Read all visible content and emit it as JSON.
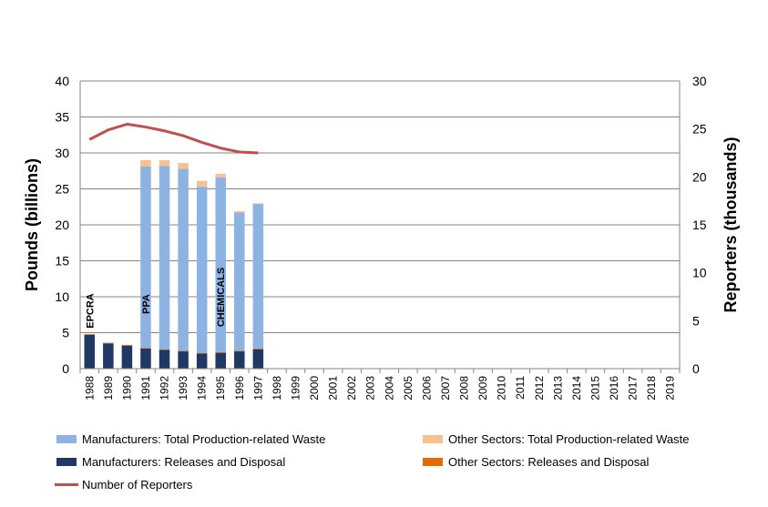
{
  "chart_data": {
    "type": "bar",
    "categories": [
      "1988",
      "1989",
      "1990",
      "1991",
      "1992",
      "1993",
      "1994",
      "1995",
      "1996",
      "1997",
      "1998",
      "1999",
      "2000",
      "2001",
      "2002",
      "2003",
      "2004",
      "2005",
      "2006",
      "2007",
      "2008",
      "2009",
      "2010",
      "2011",
      "2012",
      "2013",
      "2014",
      "2015",
      "2016",
      "2017",
      "2018",
      "2019"
    ],
    "stacked": true,
    "series": [
      {
        "name": "Manufacturers: Releases and Disposal",
        "axis": "left",
        "color": "#1f3864",
        "values": [
          4.7,
          3.5,
          3.2,
          2.8,
          2.6,
          2.4,
          2.1,
          2.2,
          2.4,
          2.7,
          null,
          null,
          null,
          null,
          null,
          null,
          null,
          null,
          null,
          null,
          null,
          null,
          null,
          null,
          null,
          null,
          null,
          null,
          null,
          null,
          null,
          null
        ]
      },
      {
        "name": "Other Sectors: Releases and Disposal",
        "axis": "left",
        "color": "#e36c09",
        "values": [
          0.1,
          0.1,
          0.1,
          0.1,
          0.1,
          0.1,
          0.1,
          0.1,
          0.1,
          0.1,
          null,
          null,
          null,
          null,
          null,
          null,
          null,
          null,
          null,
          null,
          null,
          null,
          null,
          null,
          null,
          null,
          null,
          null,
          null,
          null,
          null,
          null
        ]
      },
      {
        "name": "Manufacturers: Total Production-related Waste",
        "axis": "left",
        "color": "#8db3e2",
        "values": [
          0,
          0,
          0,
          25.2,
          25.5,
          25.3,
          23.1,
          24.3,
          19.2,
          20.1,
          null,
          null,
          null,
          null,
          null,
          null,
          null,
          null,
          null,
          null,
          null,
          null,
          null,
          null,
          null,
          null,
          null,
          null,
          null,
          null,
          null,
          null
        ]
      },
      {
        "name": "Other Sectors: Total Production-related Waste",
        "axis": "left",
        "color": "#fac090",
        "values": [
          0,
          0,
          0,
          0.9,
          0.8,
          0.8,
          0.8,
          0.5,
          0.2,
          0.1,
          null,
          null,
          null,
          null,
          null,
          null,
          null,
          null,
          null,
          null,
          null,
          null,
          null,
          null,
          null,
          null,
          null,
          null,
          null,
          null,
          null,
          null
        ]
      },
      {
        "name": "Number of Reporters",
        "type": "line",
        "axis": "right",
        "color": "#c0504d",
        "values": [
          23.9,
          24.9,
          25.5,
          25.2,
          24.8,
          24.3,
          23.6,
          23.0,
          22.6,
          22.5,
          null,
          null,
          null,
          null,
          null,
          null,
          null,
          null,
          null,
          null,
          null,
          null,
          null,
          null,
          null,
          null,
          null,
          null,
          null,
          null,
          null,
          null
        ]
      }
    ],
    "ylabel": "Pounds (billions)",
    "y2label": "Reporters (thousands)",
    "ylim": [
      0,
      40
    ],
    "yticks": [
      0,
      5,
      10,
      15,
      20,
      25,
      30,
      35,
      40
    ],
    "y2lim": [
      0,
      30
    ],
    "y2ticks": [
      0,
      5,
      10,
      15,
      20,
      25,
      30
    ],
    "grid": true,
    "legend_position": "bottom",
    "annotations": [
      {
        "text": "EPCRA",
        "category": "1988",
        "y": 5.6
      },
      {
        "text": "PPA",
        "category": "1991",
        "y": 7.6
      },
      {
        "text": "CHEMICALS",
        "category": "1995",
        "y": 5.8
      }
    ]
  },
  "legend": {
    "mfg_waste": "Manufacturers: Total Production-related Waste",
    "other_waste": "Other Sectors: Total Production-related Waste",
    "mfg_releases": "Manufacturers: Releases and Disposal",
    "other_releases": "Other Sectors: Releases and Disposal",
    "reporters": "Number of Reporters"
  }
}
